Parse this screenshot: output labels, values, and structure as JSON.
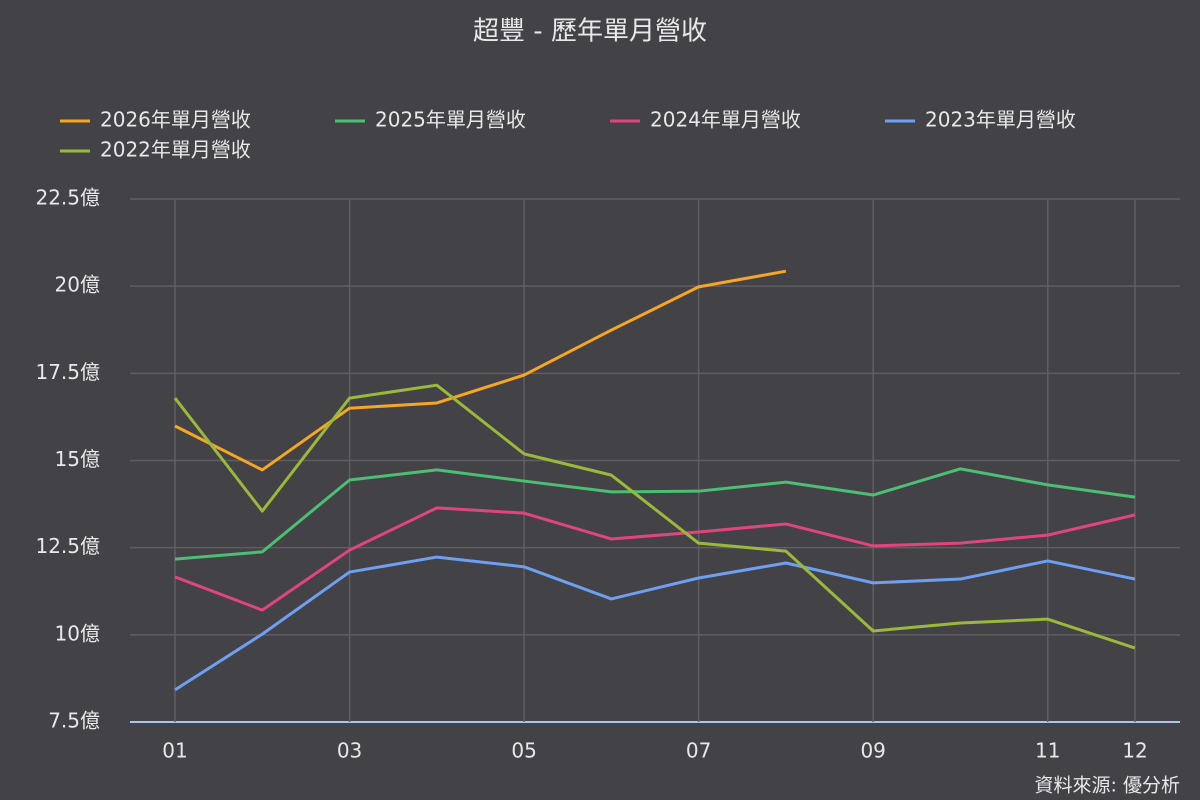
{
  "chart_data": {
    "type": "line",
    "title": "超豐 - 歷年單月營收",
    "source": "資料來源: 優分析",
    "categories": [
      "01",
      null,
      "03",
      null,
      "05",
      null,
      "07",
      null,
      "09",
      null,
      "11",
      "12"
    ],
    "series": [
      {
        "name": "2026年單月營收",
        "color": "#f5a623",
        "values": [
          15.99,
          14.73,
          16.5,
          16.65,
          17.45,
          18.74,
          19.98,
          20.43,
          null,
          null,
          null,
          null
        ]
      },
      {
        "name": "2025年單月營收",
        "color": "#4cbf73",
        "values": [
          12.17,
          12.38,
          14.44,
          14.73,
          14.41,
          14.1,
          14.12,
          14.38,
          14.01,
          14.76,
          14.3,
          13.95
        ]
      },
      {
        "name": "2024年單月營收",
        "color": "#e0457b",
        "values": [
          11.66,
          10.71,
          12.43,
          13.64,
          13.49,
          12.75,
          12.95,
          13.18,
          12.55,
          12.63,
          12.86,
          13.44
        ]
      },
      {
        "name": "2023年單月營收",
        "color": "#6e9ff0",
        "values": [
          8.42,
          10.02,
          11.8,
          12.23,
          11.95,
          11.03,
          11.63,
          12.06,
          11.49,
          11.6,
          12.12,
          11.6
        ]
      },
      {
        "name": "2022年單月營收",
        "color": "#9ab83a",
        "values": [
          16.79,
          13.55,
          16.79,
          17.16,
          15.19,
          14.58,
          12.63,
          12.4,
          10.11,
          10.34,
          10.45,
          9.62
        ]
      }
    ],
    "ylim": [
      7.5,
      22.5
    ],
    "yticks": [
      {
        "value": 7.5,
        "label": "7.5億"
      },
      {
        "value": 10,
        "label": "10億"
      },
      {
        "value": 12.5,
        "label": "12.5億"
      },
      {
        "value": 15,
        "label": "15億"
      },
      {
        "value": 17.5,
        "label": "17.5億"
      },
      {
        "value": 20,
        "label": "20億"
      },
      {
        "value": 22.5,
        "label": "22.5億"
      }
    ],
    "grid": true
  }
}
